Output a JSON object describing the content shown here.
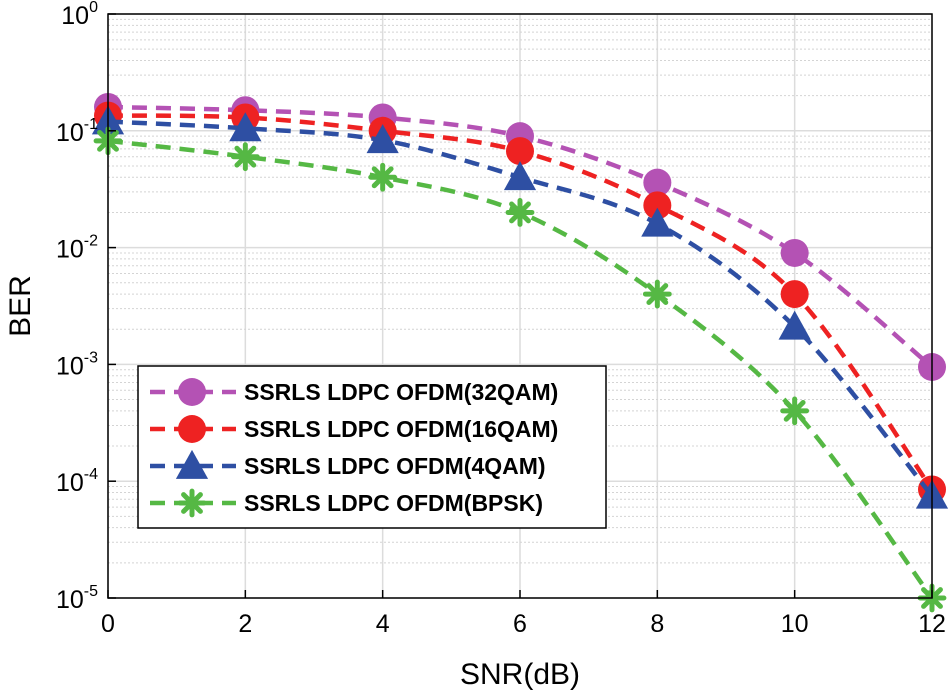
{
  "chart_data": {
    "type": "line",
    "title": "",
    "xlabel": "SNR(dB)",
    "ylabel": "BER",
    "xlim": [
      0,
      12
    ],
    "ylim": [
      1e-05,
      1
    ],
    "yscale": "log",
    "grid": true,
    "minor_grid": true,
    "legend_position": "lower-left",
    "x_ticks": [
      0,
      2,
      4,
      6,
      8,
      10,
      12
    ],
    "x_tick_labels": [
      "0",
      "2",
      "4",
      "6",
      "8",
      "10",
      "12"
    ],
    "y_ticks": [
      {
        "value": 1e-05,
        "base": "10",
        "exp": "-5"
      },
      {
        "value": 0.0001,
        "base": "10",
        "exp": "-4"
      },
      {
        "value": 0.001,
        "base": "10",
        "exp": "-3"
      },
      {
        "value": 0.01,
        "base": "10",
        "exp": "-2"
      },
      {
        "value": 0.1,
        "base": "10",
        "exp": "-1"
      },
      {
        "value": 1,
        "base": "10",
        "exp": "0"
      }
    ],
    "x": [
      0,
      2,
      4,
      6,
      8,
      10,
      12
    ],
    "series": [
      {
        "name": "SSRLS LDPC OFDM(32QAM)",
        "color": "#B452B4",
        "marker": "circle",
        "values": [
          0.16,
          0.15,
          0.13,
          0.09,
          0.036,
          0.009,
          0.00095
        ]
      },
      {
        "name": "SSRLS LDPC OFDM(16QAM)",
        "color": "#EE2222",
        "marker": "circle",
        "values": [
          0.135,
          0.13,
          0.1,
          0.067,
          0.023,
          0.004,
          8.5e-05
        ]
      },
      {
        "name": "SSRLS LDPC OFDM(4QAM)",
        "color": "#2E4FA3",
        "marker": "triangle",
        "values": [
          0.12,
          0.105,
          0.083,
          0.04,
          0.016,
          0.0021,
          7.5e-05
        ]
      },
      {
        "name": "SSRLS LDPC OFDM(BPSK)",
        "color": "#55B844",
        "marker": "asterisk",
        "values": [
          0.082,
          0.06,
          0.04,
          0.02,
          0.004,
          0.0004,
          1e-05
        ]
      }
    ]
  }
}
